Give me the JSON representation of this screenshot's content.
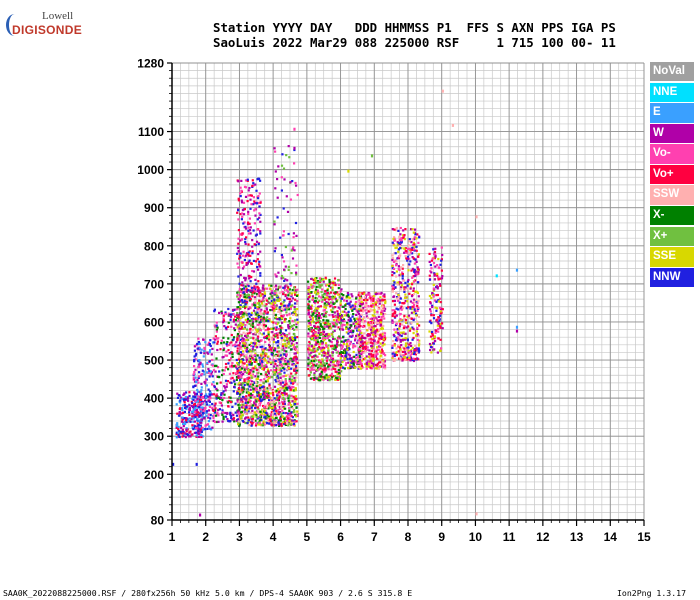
{
  "logo": {
    "line1": "Lowell",
    "line2": "DIGISONDE"
  },
  "header": {
    "line1": "Station YYYY DAY   DDD HHMMSS P1  FFS S AXN PPS IGA PS",
    "line2": "SaoLuis 2022 Mar29 088 225000 RSF     1 715 100 00- 11"
  },
  "legend": [
    {
      "label": "NoVal",
      "color": "#a0a0a0"
    },
    {
      "label": "NNE",
      "color": "#00e0ff"
    },
    {
      "label": "E",
      "color": "#3aa0ff"
    },
    {
      "label": "W",
      "color": "#b000a8"
    },
    {
      "label": "Vo-",
      "color": "#ff40b0"
    },
    {
      "label": "Vo+",
      "color": "#ff0040"
    },
    {
      "label": "SSW",
      "color": "#ffb0b0"
    },
    {
      "label": "X-",
      "color": "#008000"
    },
    {
      "label": "X+",
      "color": "#70c040"
    },
    {
      "label": "SSE",
      "color": "#d8d800"
    },
    {
      "label": "NNW",
      "color": "#2020e0"
    }
  ],
  "footer": {
    "left": "SAA0K_2022088225000.RSF / 280fx256h 50 kHz 5.0 km / DPS-4 SAA0K 903 / 2.6 S 315.8 E",
    "right": "Ion2Png 1.3.17"
  },
  "chart_data": {
    "type": "scatter",
    "xlim": [
      1,
      15
    ],
    "ylim": [
      80,
      1280
    ],
    "x_ticks": [
      "1",
      "2",
      "3",
      "4",
      "5",
      "6",
      "7",
      "8",
      "9",
      "10",
      "11",
      "12",
      "13",
      "14",
      "15"
    ],
    "y_ticks": [
      "80",
      "200",
      "300",
      "400",
      "500",
      "600",
      "700",
      "800",
      "900",
      "1000",
      "1100",
      "1280"
    ],
    "y_tick_values": [
      80,
      200,
      300,
      400,
      500,
      600,
      700,
      800,
      900,
      1000,
      1100,
      1280
    ],
    "grid": true,
    "legend_placement": "right",
    "clusters": [
      {
        "x": [
          1.1,
          1.9
        ],
        "y": [
          300,
          420
        ],
        "colors": [
          "NNW",
          "E",
          "W",
          "Vo+"
        ],
        "count": 260
      },
      {
        "x": [
          1.6,
          2.2
        ],
        "y": [
          320,
          560
        ],
        "colors": [
          "NNW",
          "W",
          "E",
          "Vo-"
        ],
        "count": 220
      },
      {
        "x": [
          2.2,
          3.0
        ],
        "y": [
          340,
          640
        ],
        "colors": [
          "W",
          "Vo-",
          "Vo+",
          "NNW",
          "X-"
        ],
        "count": 260
      },
      {
        "x": [
          2.9,
          4.7
        ],
        "y": [
          330,
          700
        ],
        "colors": [
          "W",
          "Vo-",
          "Vo+",
          "NNW",
          "X-",
          "X+",
          "SSE",
          "SSW"
        ],
        "count": 1800
      },
      {
        "x": [
          2.9,
          3.6
        ],
        "y": [
          680,
          980
        ],
        "colors": [
          "W",
          "Vo+",
          "NNW",
          "Vo-"
        ],
        "count": 220
      },
      {
        "x": [
          4.0,
          4.7
        ],
        "y": [
          640,
          1070
        ],
        "colors": [
          "W",
          "Vo-",
          "NNW",
          "X+"
        ],
        "count": 90
      },
      {
        "x": [
          5.0,
          6.0
        ],
        "y": [
          450,
          720
        ],
        "colors": [
          "W",
          "Vo-",
          "Vo+",
          "SSE",
          "X-",
          "X+"
        ],
        "count": 700
      },
      {
        "x": [
          6.0,
          6.6
        ],
        "y": [
          480,
          680
        ],
        "colors": [
          "W",
          "Vo-",
          "X-",
          "SSE",
          "NNW"
        ],
        "count": 260
      },
      {
        "x": [
          6.5,
          7.3
        ],
        "y": [
          480,
          680
        ],
        "colors": [
          "Vo-",
          "Vo+",
          "W",
          "SSW",
          "SSE"
        ],
        "count": 500
      },
      {
        "x": [
          7.5,
          8.3
        ],
        "y": [
          500,
          850
        ],
        "colors": [
          "Vo-",
          "W",
          "Vo+",
          "SSW",
          "SSE",
          "NNW"
        ],
        "count": 520
      },
      {
        "x": [
          8.6,
          9.0
        ],
        "y": [
          520,
          800
        ],
        "colors": [
          "W",
          "Vo-",
          "Vo+",
          "NNW",
          "SSE"
        ],
        "count": 150
      }
    ],
    "sparse_points": [
      {
        "x": 1.8,
        "y": 97,
        "c": "W"
      },
      {
        "x": 1.0,
        "y": 230,
        "c": "NNW"
      },
      {
        "x": 1.7,
        "y": 230,
        "c": "NNW"
      },
      {
        "x": 9.0,
        "y": 1210,
        "c": "SSW"
      },
      {
        "x": 9.3,
        "y": 1120,
        "c": "SSW"
      },
      {
        "x": 10.0,
        "y": 880,
        "c": "SSW"
      },
      {
        "x": 10.0,
        "y": 100,
        "c": "SSW"
      },
      {
        "x": 11.2,
        "y": 740,
        "c": "E"
      },
      {
        "x": 11.2,
        "y": 590,
        "c": "E"
      },
      {
        "x": 11.2,
        "y": 580,
        "c": "W"
      },
      {
        "x": 10.6,
        "y": 725,
        "c": "NNE"
      },
      {
        "x": 6.2,
        "y": 1000,
        "c": "SSE"
      },
      {
        "x": 6.9,
        "y": 1040,
        "c": "X+"
      },
      {
        "x": 4.6,
        "y": 1060,
        "c": "W"
      },
      {
        "x": 4.6,
        "y": 1110,
        "c": "Vo-"
      }
    ]
  }
}
